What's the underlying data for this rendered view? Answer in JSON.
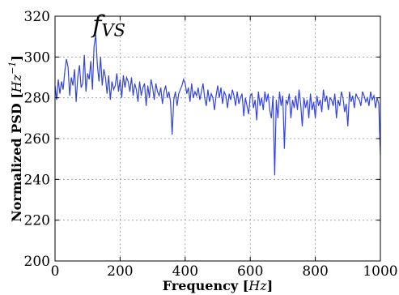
{
  "chart_data": {
    "type": "line",
    "xlabel": "Frequency",
    "xlabel_unit": "Hz",
    "ylabel": "Normalized PSD",
    "ylabel_unit": "Hz",
    "ylabel_unit_exp": "−1",
    "xlim": [
      0,
      1000
    ],
    "ylim": [
      200,
      320
    ],
    "xticks": [
      0,
      200,
      400,
      600,
      800,
      1000
    ],
    "yticks": [
      200,
      220,
      240,
      260,
      280,
      300,
      320
    ],
    "grid": true,
    "annotation": {
      "base": "f",
      "subscript": "VS",
      "x": 120,
      "y": 311
    },
    "series": [
      {
        "color": "#3344dd",
        "x": [
          0,
          5,
          10,
          15,
          20,
          25,
          30,
          35,
          40,
          45,
          50,
          55,
          60,
          65,
          70,
          75,
          80,
          85,
          90,
          95,
          100,
          105,
          110,
          115,
          120,
          125,
          130,
          135,
          140,
          145,
          150,
          155,
          160,
          165,
          170,
          175,
          180,
          185,
          190,
          195,
          200,
          205,
          210,
          215,
          220,
          225,
          230,
          235,
          240,
          245,
          250,
          255,
          260,
          265,
          270,
          275,
          280,
          285,
          290,
          295,
          300,
          305,
          310,
          315,
          320,
          325,
          330,
          335,
          340,
          345,
          350,
          355,
          360,
          365,
          370,
          375,
          380,
          385,
          390,
          395,
          400,
          405,
          410,
          415,
          420,
          425,
          430,
          435,
          440,
          445,
          450,
          455,
          460,
          465,
          470,
          475,
          480,
          485,
          490,
          495,
          500,
          505,
          510,
          515,
          520,
          525,
          530,
          535,
          540,
          545,
          550,
          555,
          560,
          565,
          570,
          575,
          580,
          585,
          590,
          595,
          600,
          605,
          610,
          615,
          620,
          625,
          630,
          635,
          640,
          645,
          650,
          655,
          660,
          665,
          670,
          675,
          680,
          685,
          690,
          695,
          700,
          705,
          710,
          715,
          720,
          725,
          730,
          735,
          740,
          745,
          750,
          755,
          760,
          765,
          770,
          775,
          780,
          785,
          790,
          795,
          800,
          805,
          810,
          815,
          820,
          825,
          830,
          835,
          840,
          845,
          850,
          855,
          860,
          865,
          870,
          875,
          880,
          885,
          890,
          895,
          900,
          905,
          910,
          915,
          920,
          925,
          930,
          935,
          940,
          945,
          950,
          955,
          960,
          965,
          970,
          975,
          980,
          985,
          990,
          995,
          1000
        ],
        "y": [
          286,
          279,
          289,
          282,
          288,
          284,
          293,
          299,
          295,
          281,
          290,
          286,
          294,
          278,
          290,
          296,
          285,
          287,
          301,
          283,
          292,
          289,
          298,
          284,
          305,
          311,
          296,
          288,
          300,
          286,
          294,
          290,
          282,
          291,
          279,
          288,
          284,
          286,
          292,
          283,
          289,
          280,
          291,
          285,
          290,
          288,
          283,
          290,
          281,
          287,
          284,
          278,
          288,
          281,
          285,
          287,
          276,
          286,
          280,
          289,
          285,
          279,
          287,
          283,
          281,
          285,
          277,
          283,
          286,
          280,
          283,
          278,
          262,
          279,
          283,
          276,
          282,
          284,
          286,
          289,
          287,
          282,
          285,
          278,
          287,
          280,
          283,
          281,
          285,
          279,
          283,
          287,
          280,
          276,
          284,
          278,
          282,
          280,
          274,
          281,
          286,
          280,
          285,
          277,
          283,
          281,
          275,
          282,
          279,
          284,
          281,
          276,
          283,
          277,
          280,
          282,
          271,
          280,
          276,
          272,
          281,
          282,
          275,
          279,
          269,
          283,
          276,
          280,
          274,
          283,
          278,
          282,
          274,
          270,
          281,
          242,
          279,
          270,
          283,
          276,
          281,
          255,
          279,
          277,
          282,
          270,
          279,
          275,
          281,
          274,
          284,
          277,
          266,
          280,
          275,
          279,
          270,
          282,
          274,
          278,
          270,
          281,
          276,
          279,
          273,
          284,
          278,
          281,
          274,
          280,
          279,
          276,
          282,
          270,
          279,
          276,
          283,
          280,
          273,
          277,
          266,
          283,
          278,
          281,
          275,
          282,
          280,
          279,
          276,
          283,
          281,
          278,
          280,
          276,
          283,
          279,
          281,
          275,
          280,
          277,
          252
        ]
      }
    ]
  }
}
